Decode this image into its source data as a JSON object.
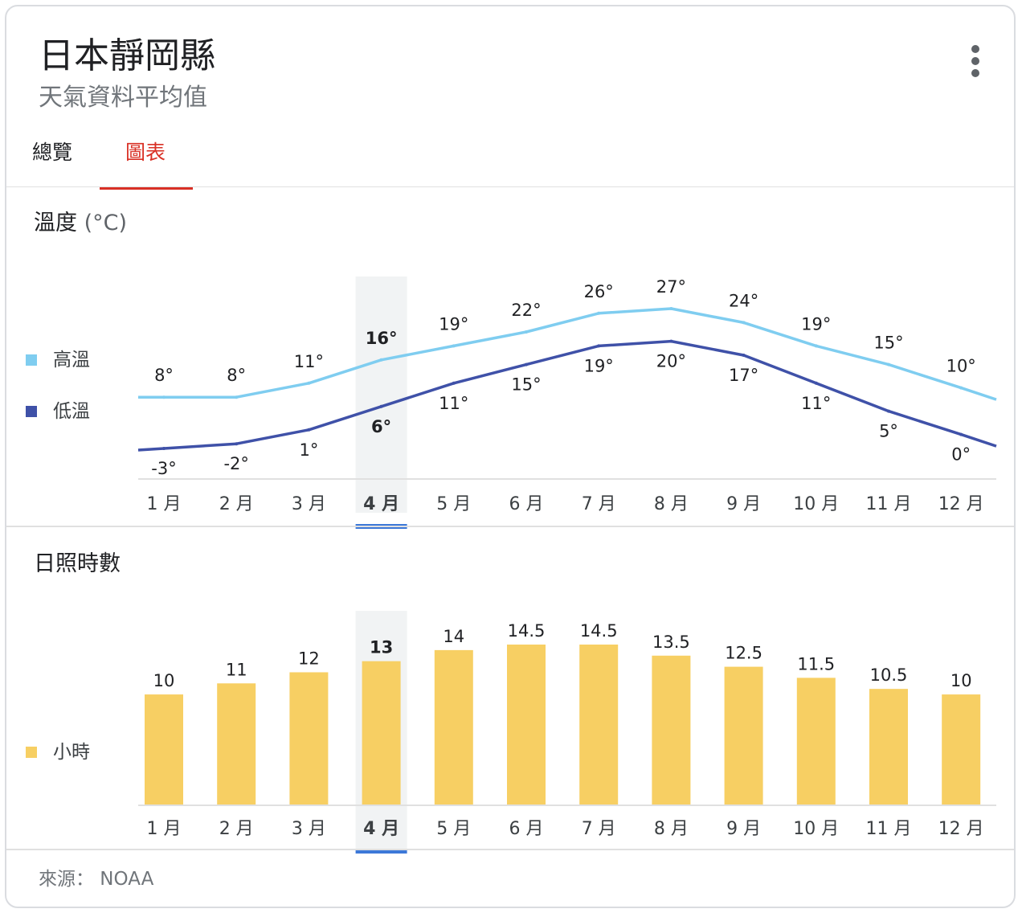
{
  "header": {
    "title": "日本靜岡縣",
    "subtitle": "天氣資料平均值"
  },
  "tabs": [
    {
      "label": "總覽",
      "active": false
    },
    {
      "label": "圖表",
      "active": true
    }
  ],
  "temperature": {
    "title": "溫度",
    "unit": "(°C)",
    "legend_high": "高溫",
    "legend_low": "低溫"
  },
  "sunshine": {
    "title": "日照時數",
    "legend": "小時"
  },
  "footer": {
    "source": "來源： NOAA"
  },
  "colors": {
    "high": "#7fcdf0",
    "low": "#3f51a8",
    "bar": "#f7cf63",
    "selected_indicator": "#3c78d8",
    "accent": "#d93025"
  },
  "chart_data": [
    {
      "type": "line",
      "title": "溫度 (°C)",
      "categories": [
        "1 月",
        "2 月",
        "3 月",
        "4 月",
        "5 月",
        "6 月",
        "7 月",
        "8 月",
        "9 月",
        "10 月",
        "11 月",
        "12 月"
      ],
      "series": [
        {
          "name": "高溫",
          "values": [
            8,
            8,
            11,
            16,
            19,
            22,
            26,
            27,
            24,
            19,
            15,
            10
          ],
          "labels": [
            "8°",
            "8°",
            "11°",
            "16°",
            "19°",
            "22°",
            "26°",
            "27°",
            "24°",
            "19°",
            "15°",
            "10°"
          ]
        },
        {
          "name": "低溫",
          "values": [
            -3,
            -2,
            1,
            6,
            11,
            15,
            19,
            20,
            17,
            11,
            5,
            0
          ],
          "labels": [
            "-3°",
            "-2°",
            "1°",
            "6°",
            "11°",
            "15°",
            "19°",
            "20°",
            "17°",
            "11°",
            "5°",
            "0°"
          ]
        }
      ],
      "selected_index": 3,
      "ylim": [
        -3,
        27
      ]
    },
    {
      "type": "bar",
      "title": "日照時數",
      "categories": [
        "1 月",
        "2 月",
        "3 月",
        "4 月",
        "5 月",
        "6 月",
        "7 月",
        "8 月",
        "9 月",
        "10 月",
        "11 月",
        "12 月"
      ],
      "series": [
        {
          "name": "小時",
          "values": [
            10,
            11,
            12,
            13,
            14,
            14.5,
            14.5,
            13.5,
            12.5,
            11.5,
            10.5,
            10
          ],
          "labels": [
            "10",
            "11",
            "12",
            "13",
            "14",
            "14.5",
            "14.5",
            "13.5",
            "12.5",
            "11.5",
            "10.5",
            "10"
          ]
        }
      ],
      "selected_index": 3,
      "ylim": [
        0,
        14.5
      ]
    }
  ]
}
